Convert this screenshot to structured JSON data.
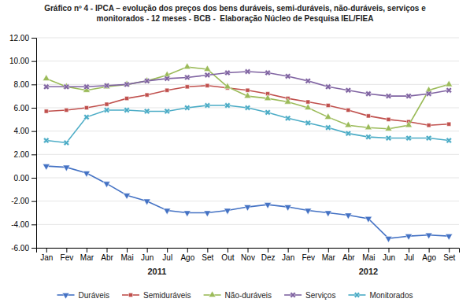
{
  "chart_data": {
    "type": "line",
    "title": "Gráfico nº 4 - IPCA – evolução dos preços dos bens duráveis, semi-duráveis, não-duráveis, serviços e\nmonitorados - 12 meses - BCB -  Elaboração Núcleo de Pesquisa IEL/FIEA",
    "categories": [
      "Jan",
      "Fev",
      "Mar",
      "Abr",
      "Mai",
      "Jun",
      "Jul",
      "Ago",
      "Set",
      "Out",
      "Nov",
      "Dez",
      "Jan",
      "Fev",
      "Mar",
      "Abr",
      "Mai",
      "Jun",
      "Jul",
      "Ago",
      "Set"
    ],
    "series": [
      {
        "name": "Duráveis",
        "color": "#4472C4",
        "marker": "triangle-down",
        "values": [
          1.0,
          0.9,
          0.4,
          -0.5,
          -1.5,
          -2.0,
          -2.8,
          -3.0,
          -3.0,
          -2.8,
          -2.5,
          -2.3,
          -2.5,
          -2.8,
          -3.0,
          -3.2,
          -3.5,
          -5.2,
          -5.0,
          -4.9,
          -5.0
        ]
      },
      {
        "name": "Semiduráveis",
        "color": "#C0504D",
        "marker": "square",
        "values": [
          5.7,
          5.8,
          6.0,
          6.3,
          6.8,
          7.1,
          7.5,
          7.8,
          7.9,
          7.7,
          7.5,
          7.2,
          6.8,
          6.5,
          6.2,
          5.8,
          5.3,
          5.0,
          4.8,
          4.5,
          4.6
        ]
      },
      {
        "name": "Não-duráveis",
        "color": "#9BBB59",
        "marker": "triangle-up",
        "values": [
          8.5,
          7.8,
          7.5,
          7.8,
          8.0,
          8.3,
          8.8,
          9.5,
          9.3,
          7.8,
          7.0,
          6.8,
          6.5,
          6.0,
          5.2,
          4.5,
          4.3,
          4.2,
          4.5,
          7.5,
          8.0
        ]
      },
      {
        "name": "Serviços",
        "color": "#8064A2",
        "marker": "x",
        "values": [
          7.8,
          7.8,
          7.8,
          7.9,
          8.0,
          8.3,
          8.5,
          8.6,
          8.8,
          9.0,
          9.1,
          9.0,
          8.7,
          8.3,
          7.8,
          7.5,
          7.2,
          7.0,
          7.0,
          7.2,
          7.5
        ]
      },
      {
        "name": "Monitorados",
        "color": "#4BACC6",
        "marker": "x",
        "values": [
          3.2,
          3.0,
          5.2,
          5.8,
          5.8,
          5.7,
          5.7,
          6.0,
          6.2,
          6.2,
          6.0,
          5.6,
          5.1,
          4.7,
          4.3,
          3.8,
          3.5,
          3.4,
          3.4,
          3.4,
          3.2
        ]
      }
    ],
    "ylim": [
      -6.0,
      12.0
    ],
    "yticks": [
      {
        "value": -6.0,
        "label": "-6.00"
      },
      {
        "value": -4.0,
        "label": "-4.00"
      },
      {
        "value": -2.0,
        "label": "-2.00"
      },
      {
        "value": 0.0,
        "label": "0.00"
      },
      {
        "value": 2.0,
        "label": "2.00"
      },
      {
        "value": 4.0,
        "label": "4.00"
      },
      {
        "value": 6.0,
        "label": "6.00"
      },
      {
        "value": 8.0,
        "label": "8.00"
      },
      {
        "value": 10.0,
        "label": "10.00"
      },
      {
        "value": 12.0,
        "label": "12.00"
      }
    ],
    "grid": true,
    "legend": "bottom",
    "annotations": [
      "2011",
      "2012"
    ]
  }
}
